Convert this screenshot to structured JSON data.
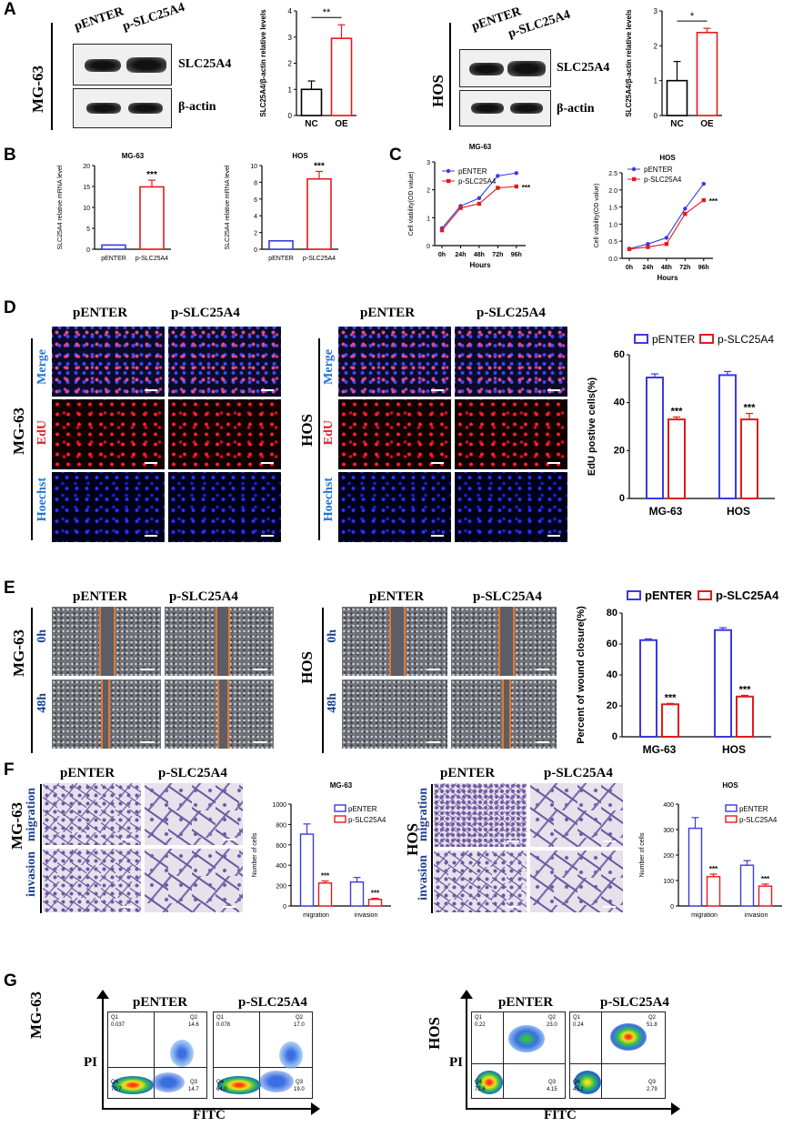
{
  "panels": {
    "A": "A",
    "B": "B",
    "C": "C",
    "D": "D",
    "E": "E",
    "F": "F",
    "G": "G"
  },
  "cell_lines": {
    "mg63": "MG-63",
    "hos": "HOS"
  },
  "groups": {
    "control": "pENTER",
    "oe": "p-SLC25A4"
  },
  "panel_a": {
    "proteins": [
      "SLC25A4",
      "β-actin"
    ],
    "chart_ylabel": "SLC25A4/β-actin relative levels",
    "categories": [
      "NC",
      "OE"
    ],
    "mg63_sig": "**",
    "hos_sig": "*"
  },
  "panel_b": {
    "ylabel": "SLC25A4 relative mRNA level",
    "categories": [
      "pENTER",
      "p-SLC25A4"
    ],
    "sig": "***"
  },
  "panel_c": {
    "ylabel": "Cell viability(OD value)",
    "xlabel": "Hours",
    "sig": "***"
  },
  "panel_d": {
    "row_labels": [
      "Merge",
      "EdU",
      "Hoechst"
    ],
    "chart_ylabel": "EdU postive cells(%)",
    "sig": "***"
  },
  "panel_e": {
    "row_labels": [
      "0h",
      "48h"
    ],
    "chart_ylabel": "Percent of wound closure(%)",
    "sig": "***"
  },
  "panel_f": {
    "row_labels": [
      "migration",
      "invasion"
    ],
    "chart_ylabel": "Number of cells",
    "sig": "***"
  },
  "panel_g": {
    "xlabel": "FITC",
    "ylabel": "PI",
    "quadrants": [
      "Q1",
      "Q2",
      "Q3",
      "Q4"
    ],
    "mg63_control": [
      "0.037",
      "14.6",
      "14.7",
      "70.7"
    ],
    "mg63_oe": [
      "0.078",
      "17.0",
      "19.0",
      "64.0"
    ],
    "hos_control": [
      "0.22",
      "23.0",
      "4.15",
      "72.6"
    ],
    "hos_oe": [
      "0.24",
      "51.8",
      "2.79",
      "45.2"
    ]
  },
  "chart_data": [
    {
      "id": "a_mg63",
      "type": "bar",
      "categories": [
        "NC",
        "OE"
      ],
      "values": [
        1.0,
        2.95
      ],
      "errors": [
        0.32,
        0.52
      ],
      "ylabel": "SLC25A4/β-actin relative levels",
      "ylim": [
        0,
        4
      ],
      "yticks": [
        0,
        1,
        2,
        3,
        4
      ],
      "colors": [
        "#000000",
        "#e31a1c"
      ],
      "annotation": "**"
    },
    {
      "id": "a_hos",
      "type": "bar",
      "categories": [
        "NC",
        "OE"
      ],
      "values": [
        1.0,
        2.38
      ],
      "errors": [
        0.55,
        0.12
      ],
      "ylabel": "SLC25A4/β-actin relative levels",
      "ylim": [
        0,
        3
      ],
      "yticks": [
        0,
        1,
        2,
        3
      ],
      "colors": [
        "#000000",
        "#e31a1c"
      ],
      "annotation": "*"
    },
    {
      "id": "b_mg63",
      "type": "bar",
      "title": "MG-63",
      "categories": [
        "pENTER",
        "p-SLC25A4"
      ],
      "values": [
        1.0,
        14.9
      ],
      "errors": [
        0,
        1.6
      ],
      "ylabel": "SLC25A4 relative mRNA level",
      "ylim": [
        0,
        20
      ],
      "yticks": [
        0,
        5,
        10,
        15,
        20
      ],
      "colors": [
        "#3a3ae0",
        "#e31a1c"
      ],
      "annotation": "***"
    },
    {
      "id": "b_hos",
      "type": "bar",
      "title": "HOS",
      "categories": [
        "pENTER",
        "p-SLC25A4"
      ],
      "values": [
        1.0,
        8.4
      ],
      "errors": [
        0,
        0.9
      ],
      "ylabel": "SLC25A4 relative mRNA level",
      "ylim": [
        0,
        10
      ],
      "yticks": [
        0,
        2,
        4,
        6,
        8,
        10
      ],
      "colors": [
        "#3a3ae0",
        "#e31a1c"
      ],
      "annotation": "***"
    },
    {
      "id": "c_mg63",
      "type": "line",
      "title": "MG-63",
      "x": [
        "0h",
        "24h",
        "48h",
        "72h",
        "96h"
      ],
      "series": [
        {
          "name": "pENTER",
          "values": [
            0.62,
            1.42,
            1.7,
            2.5,
            2.6
          ]
        },
        {
          "name": "p-SLC25A4",
          "values": [
            0.55,
            1.35,
            1.5,
            2.07,
            2.12
          ]
        }
      ],
      "xlabel": "Hours",
      "ylabel": "Cell viability(OD value)",
      "ylim": [
        0,
        3
      ],
      "yticks": [
        0,
        1,
        2,
        3
      ],
      "colors": [
        "#3a3ae0",
        "#e31a1c"
      ],
      "annotation": "***"
    },
    {
      "id": "c_hos",
      "type": "line",
      "title": "HOS",
      "x": [
        "0h",
        "24h",
        "48h",
        "72h",
        "96h"
      ],
      "series": [
        {
          "name": "pENTER",
          "values": [
            0.28,
            0.42,
            0.6,
            1.45,
            2.18
          ]
        },
        {
          "name": "p-SLC25A4",
          "values": [
            0.27,
            0.33,
            0.42,
            1.3,
            1.7
          ]
        }
      ],
      "xlabel": "Hours",
      "ylabel": "Cell viability(OD value)",
      "ylim": [
        0,
        2.5
      ],
      "yticks": [
        0,
        0.5,
        1.0,
        1.5,
        2.0,
        2.5
      ],
      "colors": [
        "#3a3ae0",
        "#e31a1c"
      ],
      "annotation": "***"
    },
    {
      "id": "d_edu",
      "type": "bar",
      "categories": [
        "MG-63",
        "HOS"
      ],
      "series": [
        {
          "name": "pENTER",
          "values": [
            50.5,
            51.5
          ],
          "errors": [
            1.5,
            1.5
          ]
        },
        {
          "name": "p-SLC25A4",
          "values": [
            33.0,
            33.0
          ],
          "errors": [
            1.0,
            2.5
          ]
        }
      ],
      "ylabel": "EdU postive cells(%)",
      "ylim": [
        0,
        60
      ],
      "yticks": [
        0,
        20,
        40,
        60
      ],
      "colors": [
        "#3a3ae0",
        "#e31a1c"
      ],
      "legend": "top",
      "annotation": "***"
    },
    {
      "id": "e_wound",
      "type": "bar",
      "categories": [
        "MG-63",
        "HOS"
      ],
      "series": [
        {
          "name": "pENTER",
          "values": [
            62.5,
            69.0
          ],
          "errors": [
            0.8,
            1.5
          ]
        },
        {
          "name": "p-SLC25A4",
          "values": [
            21.0,
            26.0
          ],
          "errors": [
            0.6,
            0.8
          ]
        }
      ],
      "ylabel": "Percent of wound closure(%)",
      "ylim": [
        0,
        80
      ],
      "yticks": [
        0,
        20,
        40,
        60,
        80
      ],
      "colors": [
        "#3a3ae0",
        "#e31a1c"
      ],
      "legend": "top",
      "annotation": "***"
    },
    {
      "id": "f_mg63",
      "type": "bar",
      "title": "MG-63",
      "categories": [
        "migration",
        "invasion"
      ],
      "series": [
        {
          "name": "pENTER",
          "values": [
            705,
            235
          ],
          "errors": [
            100,
            45
          ]
        },
        {
          "name": "p-SLC25A4",
          "values": [
            225,
            65
          ],
          "errors": [
            20,
            10
          ]
        }
      ],
      "ylabel": "Number of cells",
      "ylim": [
        0,
        1000
      ],
      "yticks": [
        0,
        200,
        400,
        600,
        800,
        1000
      ],
      "colors": [
        "#3a3ae0",
        "#e31a1c"
      ],
      "legend": "top-right",
      "annotation": "***"
    },
    {
      "id": "f_hos",
      "type": "bar",
      "title": "HOS",
      "categories": [
        "migration",
        "invasion"
      ],
      "series": [
        {
          "name": "pENTER",
          "values": [
            305,
            160
          ],
          "errors": [
            42,
            18
          ]
        },
        {
          "name": "p-SLC25A4",
          "values": [
            115,
            78
          ],
          "errors": [
            10,
            8
          ]
        }
      ],
      "ylabel": "Number of cells",
      "ylim": [
        0,
        400
      ],
      "yticks": [
        0,
        100,
        200,
        300,
        400
      ],
      "colors": [
        "#3a3ae0",
        "#e31a1c"
      ],
      "legend": "top-right",
      "annotation": "***"
    }
  ]
}
